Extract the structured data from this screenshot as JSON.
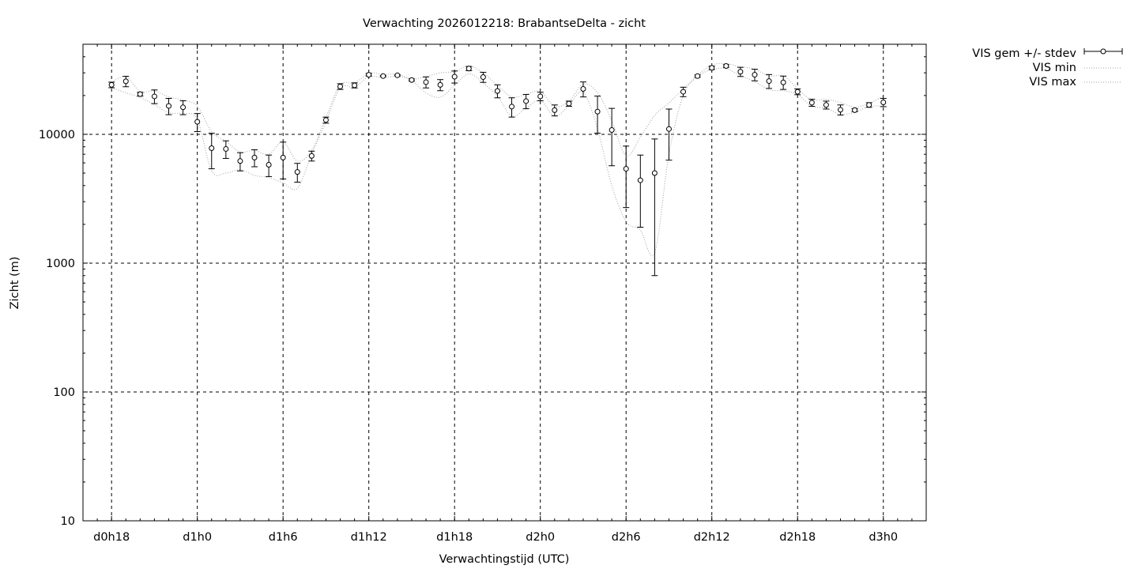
{
  "chart_data": {
    "type": "scatter",
    "title": "Verwachting 2026012218: BrabantseDelta - zicht",
    "xlabel": "Verwachtingstijd (UTC)",
    "ylabel": "Zicht (m)",
    "x_unit": "hours since d0h0",
    "xlim": [
      16,
      75
    ],
    "ylim": [
      10,
      50000
    ],
    "y_scale": "log",
    "grid": true,
    "legend_position": "top-right, outside plot",
    "x_ticks": [
      {
        "x": 18,
        "label": "d0h18"
      },
      {
        "x": 24,
        "label": "d1h0"
      },
      {
        "x": 30,
        "label": "d1h6"
      },
      {
        "x": 36,
        "label": "d1h12"
      },
      {
        "x": 42,
        "label": "d1h18"
      },
      {
        "x": 48,
        "label": "d2h0"
      },
      {
        "x": 54,
        "label": "d2h6"
      },
      {
        "x": 60,
        "label": "d2h12"
      },
      {
        "x": 66,
        "label": "d2h18"
      },
      {
        "x": 72,
        "label": "d3h0"
      }
    ],
    "y_ticks": [
      {
        "y": 10,
        "label": "10"
      },
      {
        "y": 100,
        "label": "100"
      },
      {
        "y": 1000,
        "label": "1000"
      },
      {
        "y": 10000,
        "label": "10000"
      }
    ],
    "x": [
      18,
      19,
      20,
      21,
      22,
      23,
      24,
      25,
      26,
      27,
      28,
      29,
      30,
      31,
      32,
      33,
      34,
      35,
      36,
      37,
      38,
      39,
      40,
      41,
      42,
      43,
      44,
      45,
      46,
      47,
      48,
      49,
      50,
      51,
      52,
      53,
      54,
      55,
      56,
      57,
      58,
      59,
      60,
      61,
      62,
      63,
      64,
      65,
      66,
      67,
      68,
      69,
      70,
      71,
      72
    ],
    "series": [
      {
        "name": "VIS gem +/- stdev",
        "style": "points with error bars",
        "mean": [
          24200,
          25800,
          20500,
          19700,
          16600,
          16200,
          12500,
          7800,
          7700,
          6200,
          6600,
          5800,
          6600,
          5100,
          6800,
          12900,
          23500,
          24000,
          29000,
          28300,
          28700,
          26400,
          25400,
          24200,
          28000,
          32400,
          27800,
          21700,
          16400,
          18100,
          19700,
          15400,
          17300,
          22500,
          15000,
          10800,
          5400,
          4400,
          5000,
          11000,
          21400,
          28300,
          32800,
          33900,
          30600,
          29000,
          25900,
          25300,
          21400,
          17600,
          16900,
          15500,
          15400,
          16900,
          17700
        ],
        "stdev": [
          1200,
          2400,
          700,
          2400,
          2400,
          2000,
          2000,
          2400,
          1200,
          1000,
          1000,
          1100,
          2100,
          850,
          600,
          700,
          1200,
          1100,
          700,
          300,
          300,
          500,
          2500,
          2400,
          3000,
          1200,
          2500,
          2500,
          2800,
          2300,
          1500,
          1500,
          800,
          3000,
          4800,
          5100,
          2700,
          2500,
          4200,
          4700,
          1800,
          600,
          1000,
          800,
          2500,
          3000,
          3200,
          3000,
          1100,
          1100,
          1200,
          1400,
          400,
          700,
          1300
        ]
      },
      {
        "name": "VIS min",
        "style": "dotted line",
        "values": [
          23000,
          21000,
          19300,
          17000,
          14700,
          14500,
          13000,
          5200,
          5000,
          5300,
          4800,
          4600,
          4200,
          3800,
          7000,
          12500,
          23000,
          23200,
          28000,
          27500,
          28200,
          26200,
          21000,
          19400,
          24000,
          29500,
          25000,
          19800,
          13800,
          16000,
          18300,
          13800,
          16700,
          21300,
          11000,
          4000,
          2100,
          1800,
          1200,
          7000,
          20000,
          28000,
          31800,
          32300,
          28500,
          25700,
          22200,
          21800,
          20400,
          16500,
          16000,
          14300,
          14800,
          16500,
          16500
        ]
      },
      {
        "name": "VIS max",
        "style": "dotted line",
        "values": [
          25300,
          28000,
          21500,
          21700,
          19500,
          18500,
          16500,
          10500,
          8800,
          7300,
          7500,
          7000,
          8700,
          6200,
          7500,
          13500,
          24200,
          25000,
          29700,
          29200,
          29300,
          27000,
          28000,
          30000,
          30500,
          34000,
          30000,
          24000,
          19500,
          20400,
          21500,
          16500,
          18000,
          24500,
          21000,
          12800,
          6800,
          9500,
          14000,
          17500,
          22500,
          28700,
          34500,
          35300,
          33500,
          32000,
          28400,
          28400,
          22600,
          18500,
          18700,
          17600,
          16300,
          17300,
          19800
        ]
      }
    ]
  }
}
